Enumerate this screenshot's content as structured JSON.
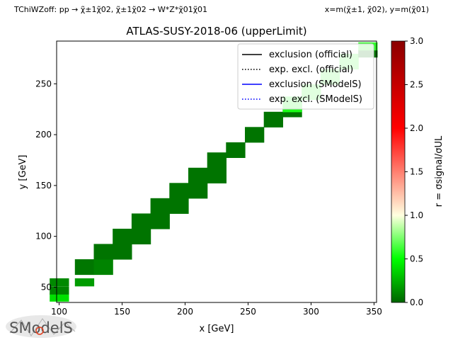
{
  "header": {
    "left": "TChiWZoff: pp → χ̃±1χ̃02, χ̃±1χ̃02 → W*Z*χ̃01χ̃01",
    "right": "x=m(χ̃±1, χ̃02), y=m(χ̃01)"
  },
  "logo": {
    "text": "SModelS"
  },
  "chart_data": {
    "type": "heatmap",
    "title": "ATLAS-SUSY-2018-06 (upperLimit)",
    "xlabel": "x [GeV]",
    "ylabel": "y [GeV]",
    "xlim": [
      98,
      352
    ],
    "ylim": [
      35,
      292
    ],
    "xticks": [
      100,
      150,
      200,
      250,
      300,
      350
    ],
    "yticks": [
      50,
      100,
      150,
      200,
      250
    ],
    "grid": false,
    "legend_position": "top-right",
    "legend": [
      {
        "label": "exclusion (official)",
        "color": "#000000",
        "style": "solid"
      },
      {
        "label": "exp. excl. (official)",
        "color": "#000000",
        "style": "dotted"
      },
      {
        "label": "exclusion (SModelS)",
        "color": "#0000ff",
        "style": "solid"
      },
      {
        "label": "exp. excl. (SModelS)",
        "color": "#0000ff",
        "style": "dotted"
      }
    ],
    "colorbar": {
      "label": "r = σsignal/σUL",
      "range": [
        0.0,
        3.0
      ],
      "ticks": [
        "0.0",
        "0.5",
        "1.0",
        "1.5",
        "2.0",
        "2.5",
        "3.0"
      ],
      "colors": [
        "#006400",
        "#00ff00",
        "#ffffe0",
        "#ff0000",
        "#8b0000"
      ]
    },
    "cells": [
      {
        "x": 100,
        "y": 40,
        "r": 0.4
      },
      {
        "x": 100,
        "y": 47,
        "r": 0.1
      },
      {
        "x": 100,
        "y": 55,
        "r": 0.12
      },
      {
        "x": 120,
        "y": 55,
        "r": 0.18
      },
      {
        "x": 120,
        "y": 70,
        "r": 0.06
      },
      {
        "x": 135,
        "y": 70,
        "r": 0.1
      },
      {
        "x": 135,
        "y": 85,
        "r": 0.05
      },
      {
        "x": 150,
        "y": 85,
        "r": 0.05
      },
      {
        "x": 150,
        "y": 100,
        "r": 0.05
      },
      {
        "x": 165,
        "y": 100,
        "r": 0.05
      },
      {
        "x": 165,
        "y": 115,
        "r": 0.05
      },
      {
        "x": 180,
        "y": 115,
        "r": 0.05
      },
      {
        "x": 180,
        "y": 130,
        "r": 0.05
      },
      {
        "x": 195,
        "y": 130,
        "r": 0.05
      },
      {
        "x": 195,
        "y": 145,
        "r": 0.05
      },
      {
        "x": 210,
        "y": 145,
        "r": 0.05
      },
      {
        "x": 210,
        "y": 160,
        "r": 0.05
      },
      {
        "x": 225,
        "y": 160,
        "r": 0.05
      },
      {
        "x": 225,
        "y": 175,
        "r": 0.05
      },
      {
        "x": 240,
        "y": 185,
        "r": 0.05
      },
      {
        "x": 255,
        "y": 200,
        "r": 0.05
      },
      {
        "x": 270,
        "y": 215,
        "r": 0.05
      },
      {
        "x": 285,
        "y": 225,
        "r": 0.05
      },
      {
        "x": 285,
        "y": 230,
        "r": 0.55
      },
      {
        "x": 300,
        "y": 242,
        "r": 0.6
      },
      {
        "x": 315,
        "y": 257,
        "r": 0.62
      },
      {
        "x": 330,
        "y": 272,
        "r": 0.62
      },
      {
        "x": 345,
        "y": 280,
        "r": 0.05
      },
      {
        "x": 345,
        "y": 287,
        "r": 0.6
      }
    ]
  }
}
